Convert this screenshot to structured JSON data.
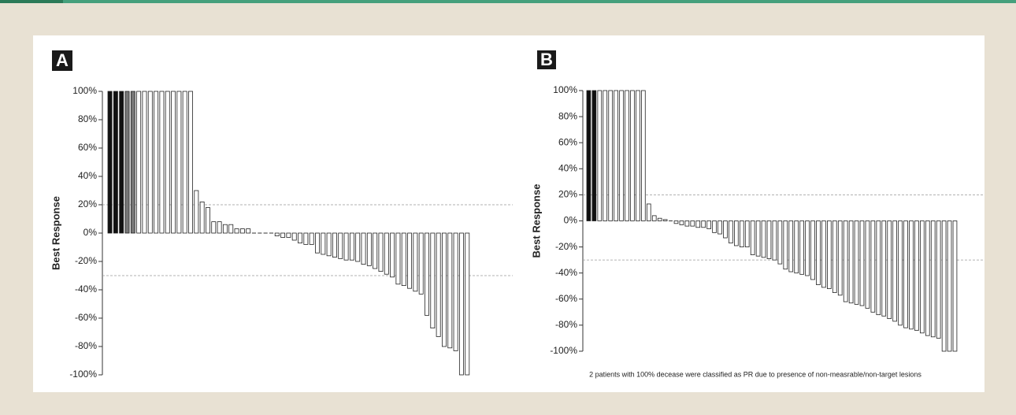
{
  "chart_data": [
    {
      "type": "bar",
      "panel_label": "A",
      "ylabel": "Best Response",
      "values": [
        100,
        100,
        100,
        100,
        100,
        100,
        100,
        100,
        100,
        100,
        100,
        100,
        100,
        100,
        100,
        30,
        22,
        18,
        8,
        8,
        6,
        6,
        3,
        3,
        3,
        0,
        0,
        0,
        0,
        -2,
        -3,
        -3,
        -5,
        -7,
        -8,
        -8,
        -14,
        -15,
        -16,
        -17,
        -18,
        -19,
        -19,
        -20,
        -22,
        -23,
        -25,
        -27,
        -29,
        -31,
        -36,
        -37,
        -39,
        -41,
        -43,
        -58,
        -67,
        -73,
        -80,
        -81,
        -83,
        -100,
        -100
      ],
      "colors": [
        "#111",
        "#111",
        "#111",
        "#777",
        "#777",
        "#fff",
        "#fff",
        "#fff",
        "#fff",
        "#fff",
        "#fff",
        "#fff",
        "#fff",
        "#fff",
        "#fff",
        "#fff",
        "#fff",
        "#fff",
        "#fff",
        "#fff",
        "#fff",
        "#fff",
        "#fff",
        "#fff",
        "#fff",
        "#fff",
        "#fff",
        "#fff",
        "#fff",
        "#fff",
        "#fff",
        "#fff",
        "#fff",
        "#fff",
        "#fff",
        "#fff",
        "#fff",
        "#fff",
        "#fff",
        "#fff",
        "#fff",
        "#fff",
        "#fff",
        "#fff",
        "#fff",
        "#fff",
        "#fff",
        "#fff",
        "#fff",
        "#fff",
        "#fff",
        "#fff",
        "#fff",
        "#fff",
        "#fff",
        "#fff",
        "#fff",
        "#fff",
        "#fff",
        "#fff",
        "#fff",
        "#fff",
        "#fff"
      ],
      "ylim": [
        -100,
        100
      ],
      "yticks": [
        {
          "value": 100,
          "label": "100%"
        },
        {
          "value": 80,
          "label": "80%"
        },
        {
          "value": 60,
          "label": "60%"
        },
        {
          "value": 40,
          "label": "40%"
        },
        {
          "value": 20,
          "label": "20%"
        },
        {
          "value": 0,
          "label": "0%"
        },
        {
          "value": -20,
          "label": "-20%"
        },
        {
          "value": -40,
          "label": "-40%"
        },
        {
          "value": -60,
          "label": "-60%"
        },
        {
          "value": -80,
          "label": "-80%"
        },
        {
          "value": -100,
          "label": "-100%"
        }
      ],
      "reference_lines": [
        20,
        -30
      ]
    },
    {
      "type": "bar",
      "panel_label": "B",
      "ylabel": "Best Response",
      "values": [
        100,
        100,
        100,
        100,
        100,
        100,
        100,
        100,
        100,
        100,
        100,
        13,
        4,
        2,
        1,
        0,
        -2,
        -3,
        -4,
        -4,
        -5,
        -5,
        -6,
        -9,
        -10,
        -13,
        -17,
        -19,
        -20,
        -20,
        -26,
        -27,
        -28,
        -29,
        -30,
        -33,
        -37,
        -39,
        -40,
        -41,
        -42,
        -45,
        -49,
        -51,
        -52,
        -55,
        -57,
        -62,
        -63,
        -64,
        -65,
        -67,
        -70,
        -72,
        -73,
        -75,
        -77,
        -80,
        -82,
        -83,
        -84,
        -86,
        -88,
        -89,
        -90,
        -100,
        -100,
        -100
      ],
      "colors": [
        "#111",
        "#111",
        "#fff",
        "#fff",
        "#fff",
        "#fff",
        "#fff",
        "#fff",
        "#fff",
        "#fff",
        "#fff",
        "#fff",
        "#fff",
        "#fff",
        "#fff",
        "#fff",
        "#fff",
        "#fff",
        "#fff",
        "#fff",
        "#fff",
        "#fff",
        "#fff",
        "#fff",
        "#fff",
        "#fff",
        "#fff",
        "#fff",
        "#fff",
        "#fff",
        "#fff",
        "#fff",
        "#fff",
        "#fff",
        "#fff",
        "#fff",
        "#fff",
        "#fff",
        "#fff",
        "#fff",
        "#fff",
        "#fff",
        "#fff",
        "#fff",
        "#fff",
        "#fff",
        "#fff",
        "#fff",
        "#fff",
        "#fff",
        "#fff",
        "#fff",
        "#fff",
        "#fff",
        "#fff",
        "#fff",
        "#fff",
        "#fff",
        "#fff",
        "#fff",
        "#fff",
        "#fff",
        "#fff",
        "#fff",
        "#fff",
        "#fff",
        "#fff",
        "#fff"
      ],
      "ylim": [
        -100,
        100
      ],
      "yticks": [
        {
          "value": 100,
          "label": "100%"
        },
        {
          "value": 80,
          "label": "80%"
        },
        {
          "value": 60,
          "label": "60%"
        },
        {
          "value": 40,
          "label": "40%"
        },
        {
          "value": 20,
          "label": "20%"
        },
        {
          "value": 0,
          "label": "0%"
        },
        {
          "value": -20,
          "label": "-20%"
        },
        {
          "value": -40,
          "label": "-40%"
        },
        {
          "value": -60,
          "label": "-60%"
        },
        {
          "value": -80,
          "label": "-80%"
        },
        {
          "value": -100,
          "label": "-100%"
        }
      ],
      "reference_lines": [
        20,
        -30
      ],
      "note": "2 patients with 100% decease were classified as PR due to presence of non-measrable/non-target lesions"
    }
  ]
}
